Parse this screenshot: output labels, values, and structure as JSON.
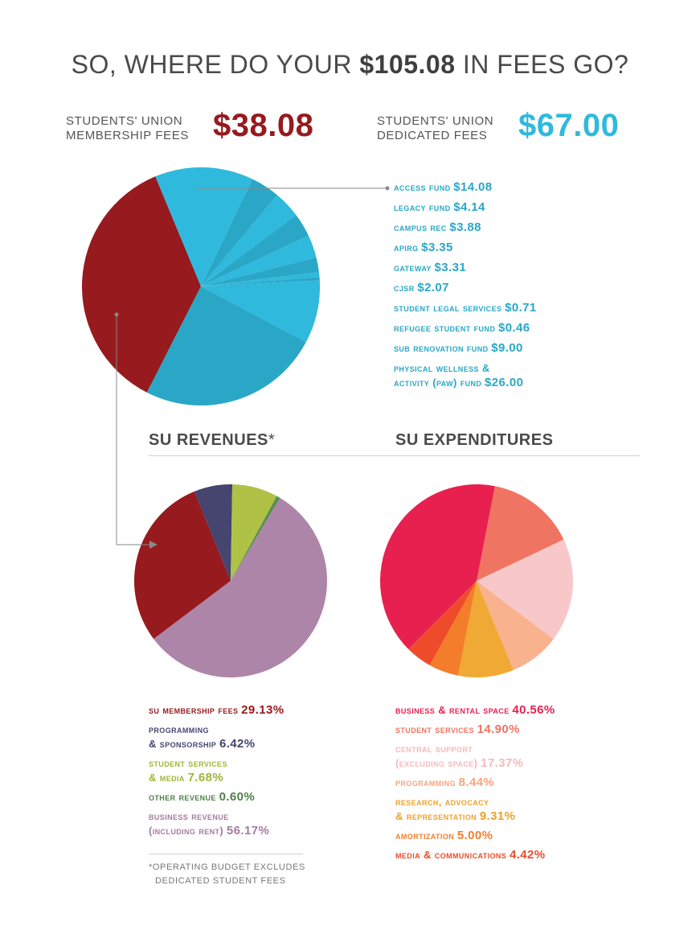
{
  "header": {
    "title_pre": "SO, WHERE DO YOUR ",
    "title_amount": "$105.08",
    "title_post": " IN FEES GO?",
    "membership_label_1": "STUDENTS' UNION",
    "membership_label_2": "MEMBERSHIP FEES",
    "membership_amount": "$38.08",
    "dedicated_label_1": "STUDENTS' UNION",
    "dedicated_label_2": "DEDICATED FEES",
    "dedicated_amount": "$67.00"
  },
  "colors": {
    "membership": "#961a1e",
    "dedicated": "#2fb9dc",
    "dedicated_dark": "#2aa7c6",
    "legend_text": "#2aa7c6",
    "connector": "#8a8a8a"
  },
  "sections": {
    "revenues_title": "SU REVENUES",
    "revenues_star": "*",
    "expenditures_title": "SU EXPENDITURES",
    "footnote_1": "*OPERATING BUDGET EXCLUDES",
    "footnote_2": "DEDICATED STUDENT FEES"
  },
  "chart_data": [
    {
      "type": "pie",
      "title": "",
      "total_label": "$105.08",
      "slices": [
        {
          "name": "Students' Union Membership Fees",
          "value": 38.08,
          "color": "#961a1e"
        },
        {
          "name": "Access Fund",
          "value": 14.08,
          "color": "#2fb9dc"
        },
        {
          "name": "Legacy Fund",
          "value": 4.14,
          "color": "#2aa7c6"
        },
        {
          "name": "Campus Rec",
          "value": 3.88,
          "color": "#2fb9dc"
        },
        {
          "name": "APIRG",
          "value": 3.35,
          "color": "#2aa7c6"
        },
        {
          "name": "Gateway",
          "value": 3.31,
          "color": "#2fb9dc"
        },
        {
          "name": "CJSR",
          "value": 2.07,
          "color": "#2aa7c6"
        },
        {
          "name": "Student Legal Services",
          "value": 0.71,
          "color": "#2fb9dc"
        },
        {
          "name": "Refugee Student Fund",
          "value": 0.46,
          "color": "#2aa7c6"
        },
        {
          "name": "SUB Renovation Fund",
          "value": 9.0,
          "color": "#2fb9dc"
        },
        {
          "name": "Physical Wellness & Activity (PAW) Fund",
          "value": 26.0,
          "color": "#2aa7c6"
        }
      ],
      "legend": [
        {
          "label": "access fund",
          "value": "$14.08"
        },
        {
          "label": "legacy fund",
          "value": "$4.14"
        },
        {
          "label": "campus rec",
          "value": "$3.88"
        },
        {
          "label": "apirg",
          "value": "$3.35"
        },
        {
          "label": "gateway",
          "value": "$3.31"
        },
        {
          "label": "cjsr",
          "value": "$2.07"
        },
        {
          "label": "student legal services",
          "value": "$0.71"
        },
        {
          "label": "refugee student fund",
          "value": "$0.46"
        },
        {
          "label": "sub renovation fund",
          "value": "$9.00"
        },
        {
          "label": "physical wellness &",
          "label2": "activity (paw) fund",
          "value": "$26.00"
        }
      ]
    },
    {
      "type": "pie",
      "title": "SU REVENUES*",
      "slices": [
        {
          "name": "SU Membership Fees",
          "value": 29.13,
          "color": "#961a1e"
        },
        {
          "name": "Programming & Sponsorship",
          "value": 6.42,
          "color": "#454570"
        },
        {
          "name": "Student Services & Media",
          "value": 7.68,
          "color": "#afc245"
        },
        {
          "name": "Other Revenue",
          "value": 0.6,
          "color": "#5a8c55"
        },
        {
          "name": "Business Revenue (including rent)",
          "value": 56.17,
          "color": "#ad85a8"
        }
      ],
      "legend": [
        {
          "label": "su membership fees",
          "value": "29.13%",
          "color": "#961a1e"
        },
        {
          "label": "programming",
          "label2": "& sponsorship",
          "value": "6.42%",
          "color": "#454570"
        },
        {
          "label": "student services",
          "label2": "& media",
          "value": "7.68%",
          "color": "#9fb53a"
        },
        {
          "label": "other revenue",
          "value": "0.60%",
          "color": "#4f8049"
        },
        {
          "label": "business revenue",
          "label2": "(including rent)",
          "value": "56.17%",
          "color": "#a47ca0"
        }
      ]
    },
    {
      "type": "pie",
      "title": "SU EXPENDITURES",
      "slices": [
        {
          "name": "Student Services",
          "value": 14.9,
          "color": "#f07462"
        },
        {
          "name": "Central Support (excluding space)",
          "value": 17.37,
          "color": "#f8c7c9"
        },
        {
          "name": "Programming",
          "value": 8.44,
          "color": "#f9b28e"
        },
        {
          "name": "Research, Advocacy & Representation",
          "value": 9.31,
          "color": "#f0a934"
        },
        {
          "name": "Amortization",
          "value": 5.0,
          "color": "#f47d2b"
        },
        {
          "name": "Media & Communications",
          "value": 4.42,
          "color": "#ee4b2b"
        },
        {
          "name": "Business & Rental Space",
          "value": 40.56,
          "color": "#e8204f"
        }
      ],
      "legend": [
        {
          "label": "business & rental space",
          "value": "40.56%",
          "color": "#e8204f"
        },
        {
          "label": "student services",
          "value": "14.90%",
          "color": "#f07462"
        },
        {
          "label": "central support",
          "label2": "(excluding space)",
          "value": "17.37%",
          "color": "#f5b9bc"
        },
        {
          "label": "programming",
          "value": "8.44%",
          "color": "#f7a47e"
        },
        {
          "label": "research, advocacy",
          "label2": "& representation",
          "value": "9.31%",
          "color": "#eba22c"
        },
        {
          "label": "amortization",
          "value": "5.00%",
          "color": "#f47d2b"
        },
        {
          "label": "media & communications",
          "value": "4.42%",
          "color": "#ee4b2b"
        }
      ]
    }
  ]
}
